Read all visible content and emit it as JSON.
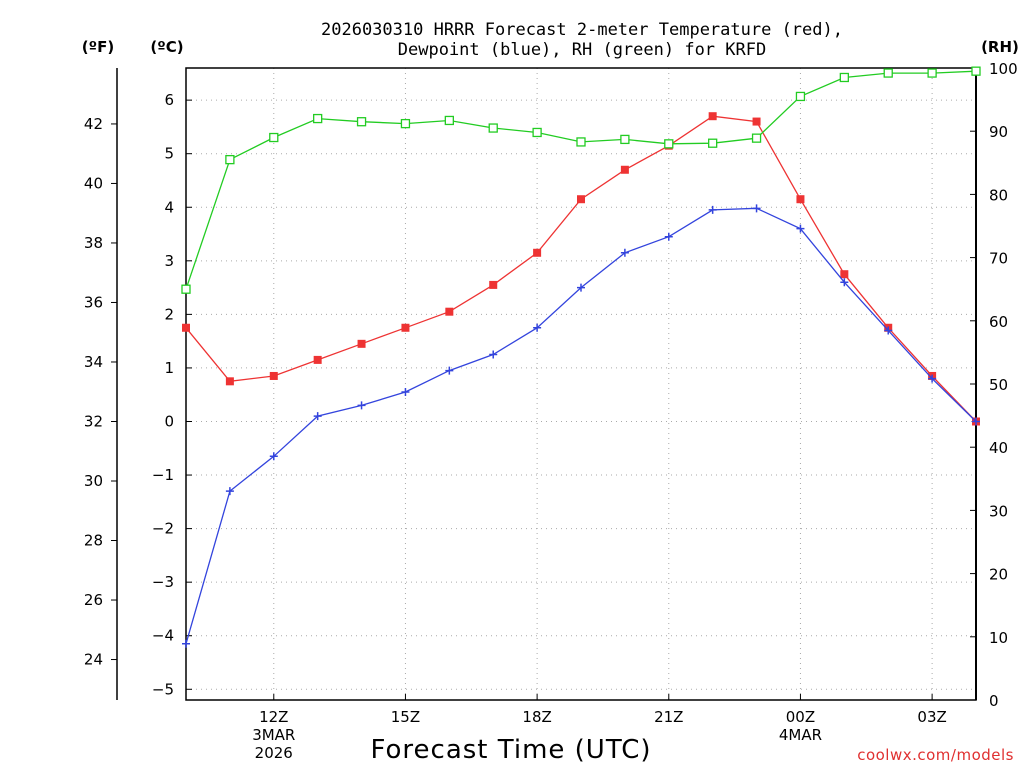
{
  "chart_data": {
    "type": "line",
    "title_lines": [
      "2026030310 HRRR Forecast 2-meter Temperature (red),",
      "Dewpoint (blue), RH (green) for KRFD"
    ],
    "xlabel": "Forecast Time (UTC)",
    "credit": "coolwx.com/models",
    "units": {
      "left_f": "(ºF)",
      "left_c": "(ºC)",
      "right_rh": "(RH)"
    },
    "x_hours": [
      10,
      11,
      12,
      13,
      14,
      15,
      16,
      17,
      18,
      19,
      20,
      21,
      22,
      23,
      24,
      25,
      26,
      27,
      28
    ],
    "x_range": [
      10,
      28
    ],
    "x_ticks": [
      {
        "hour": 12,
        "lines": [
          "12Z",
          "3MAR",
          "2026"
        ]
      },
      {
        "hour": 15,
        "lines": [
          "15Z"
        ]
      },
      {
        "hour": 18,
        "lines": [
          "18Z"
        ]
      },
      {
        "hour": 21,
        "lines": [
          "21Z"
        ]
      },
      {
        "hour": 24,
        "lines": [
          "00Z",
          "4MAR"
        ]
      },
      {
        "hour": 27,
        "lines": [
          "03Z"
        ]
      }
    ],
    "y_celsius": {
      "range": [
        -5.2,
        6.6
      ],
      "ticks": [
        -5,
        -4,
        -3,
        -2,
        -1,
        0,
        1,
        2,
        3,
        4,
        5,
        6
      ]
    },
    "y_fahrenheit": {
      "ticks": [
        24,
        26,
        28,
        30,
        32,
        34,
        36,
        38,
        40,
        42
      ]
    },
    "y_rh": {
      "range": [
        0,
        100
      ],
      "ticks": [
        0,
        10,
        20,
        30,
        40,
        50,
        60,
        70,
        80,
        90,
        100
      ]
    },
    "series": [
      {
        "name": "Temperature",
        "axis": "celsius",
        "color": "#ee3333",
        "marker": "filled-square",
        "values": [
          1.75,
          0.75,
          0.85,
          1.15,
          1.45,
          1.75,
          2.05,
          2.55,
          3.15,
          4.15,
          4.7,
          5.15,
          5.7,
          5.6,
          4.15,
          2.75,
          1.75,
          0.85,
          0.0
        ]
      },
      {
        "name": "Dewpoint",
        "axis": "celsius",
        "color": "#3344dd",
        "marker": "plus",
        "values": [
          -4.15,
          -1.3,
          -0.65,
          0.1,
          0.3,
          0.55,
          0.95,
          1.25,
          1.75,
          2.5,
          3.15,
          3.45,
          3.95,
          3.98,
          3.6,
          2.6,
          1.7,
          0.8,
          0.0
        ]
      },
      {
        "name": "RH",
        "axis": "rh",
        "color": "#22cc22",
        "marker": "open-square",
        "values": [
          65,
          85.5,
          89,
          92,
          91.5,
          91.2,
          91.7,
          90.5,
          89.8,
          88.3,
          88.7,
          88,
          88.1,
          88.9,
          95.5,
          98.5,
          99.2,
          99.2,
          99.5
        ]
      }
    ]
  }
}
